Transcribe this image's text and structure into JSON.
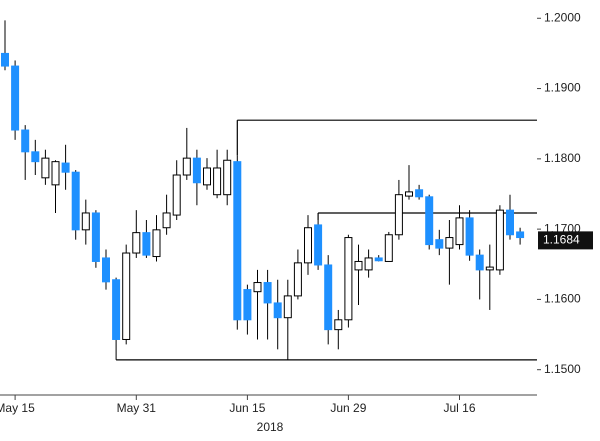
{
  "chart_data": {
    "type": "candlestick",
    "xlabel": "2018",
    "categories": [
      null,
      "May 15",
      null,
      null,
      null,
      null,
      null,
      null,
      null,
      null,
      null,
      null,
      null,
      "May 31",
      null,
      null,
      null,
      null,
      null,
      null,
      null,
      null,
      null,
      null,
      "Jun 15",
      null,
      null,
      null,
      null,
      null,
      null,
      null,
      null,
      null,
      "Jun 29",
      null,
      null,
      null,
      null,
      null,
      null,
      null,
      null,
      null,
      null,
      "Jul 16",
      null,
      null,
      null,
      null,
      null,
      null
    ],
    "open": [
      1.195,
      1.1932,
      1.1841,
      1.181,
      1.1773,
      1.1763,
      1.1794,
      1.1781,
      1.1699,
      1.1723,
      1.1659,
      1.1628,
      1.1543,
      1.1666,
      1.1695,
      1.1661,
      1.1702,
      1.172,
      1.1777,
      1.1801,
      1.1763,
      1.1749,
      1.1749,
      1.1796,
      1.1614,
      1.1611,
      1.1624,
      1.1595,
      1.1574,
      1.1605,
      1.1652,
      1.1706,
      1.1649,
      1.1557,
      1.1571,
      1.1642,
      1.1642,
      1.1659,
      1.1654,
      1.1692,
      1.1747,
      1.1756,
      1.1746,
      1.1685,
      1.1673,
      1.1678,
      1.1716,
      1.1663,
      1.1642,
      1.1642,
      1.1727,
      1.1696
    ],
    "high": [
      1.1997,
      1.194,
      1.1848,
      1.1827,
      1.1813,
      1.1798,
      1.182,
      1.1784,
      1.1742,
      1.1727,
      1.1671,
      1.1631,
      1.1678,
      1.1727,
      1.1713,
      1.172,
      1.1749,
      1.1798,
      1.1844,
      1.1813,
      1.1801,
      1.1813,
      1.1813,
      1.1805,
      1.1621,
      1.1642,
      1.1642,
      1.1628,
      1.1628,
      1.1671,
      1.172,
      1.1713,
      1.1663,
      1.1585,
      1.1692,
      1.1678,
      1.1671,
      1.1663,
      1.1696,
      1.177,
      1.1791,
      1.1763,
      1.1749,
      1.1699,
      1.1713,
      1.1734,
      1.1727,
      1.1671,
      1.1678,
      1.1734,
      1.1749,
      1.1702
    ],
    "low": [
      1.1926,
      1.1827,
      1.177,
      1.1777,
      1.1763,
      1.1723,
      1.1756,
      1.1685,
      1.1678,
      1.1645,
      1.1614,
      1.1514,
      1.1536,
      1.1659,
      1.1659,
      1.1654,
      1.1692,
      1.1713,
      1.177,
      1.1734,
      1.1756,
      1.1744,
      1.1734,
      1.1557,
      1.155,
      1.1543,
      1.1543,
      1.1529,
      1.1514,
      1.16,
      1.1635,
      1.1642,
      1.1536,
      1.1529,
      1.156,
      1.1592,
      1.1631,
      1.1654,
      1.1654,
      1.1685,
      1.1742,
      1.1742,
      1.1671,
      1.1663,
      1.1621,
      1.1671,
      1.1655,
      1.16,
      1.1585,
      1.1635,
      1.1685,
      1.1678
    ],
    "close": [
      1.1932,
      1.1841,
      1.181,
      1.1796,
      1.1801,
      1.1796,
      1.1781,
      1.1699,
      1.1723,
      1.1654,
      1.1625,
      1.1543,
      1.1666,
      1.1695,
      1.1663,
      1.1699,
      1.1723,
      1.1777,
      1.1801,
      1.1766,
      1.1787,
      1.1787,
      1.1798,
      1.1571,
      1.1571,
      1.1624,
      1.1595,
      1.1574,
      1.1605,
      1.1652,
      1.1702,
      1.1649,
      1.1557,
      1.1571,
      1.1688,
      1.1654,
      1.1659,
      1.1655,
      1.1692,
      1.1749,
      1.1753,
      1.1746,
      1.1678,
      1.1673,
      1.1688,
      1.1716,
      1.1663,
      1.1642,
      1.1646,
      1.1727,
      1.1692,
      1.1688
    ],
    "up_color": "#ffffff",
    "down_color": "#1e90ff",
    "levels": [
      {
        "value": 1.1855,
        "start": 23
      },
      {
        "value": 1.1723,
        "start": 31
      },
      {
        "value": 1.1514,
        "start": 11
      }
    ],
    "last_price": 1.1684,
    "ylim": [
      1.1464,
      1.2026
    ],
    "yticks": [
      {
        "value": 1.15,
        "label": "1.1500"
      },
      {
        "value": 1.16,
        "label": "1.1600"
      },
      {
        "value": 1.17,
        "label": "1.1700"
      },
      {
        "value": 1.18,
        "label": "1.1800"
      },
      {
        "value": 1.19,
        "label": "1.1900"
      },
      {
        "value": 1.2,
        "label": "1.2000"
      }
    ]
  }
}
